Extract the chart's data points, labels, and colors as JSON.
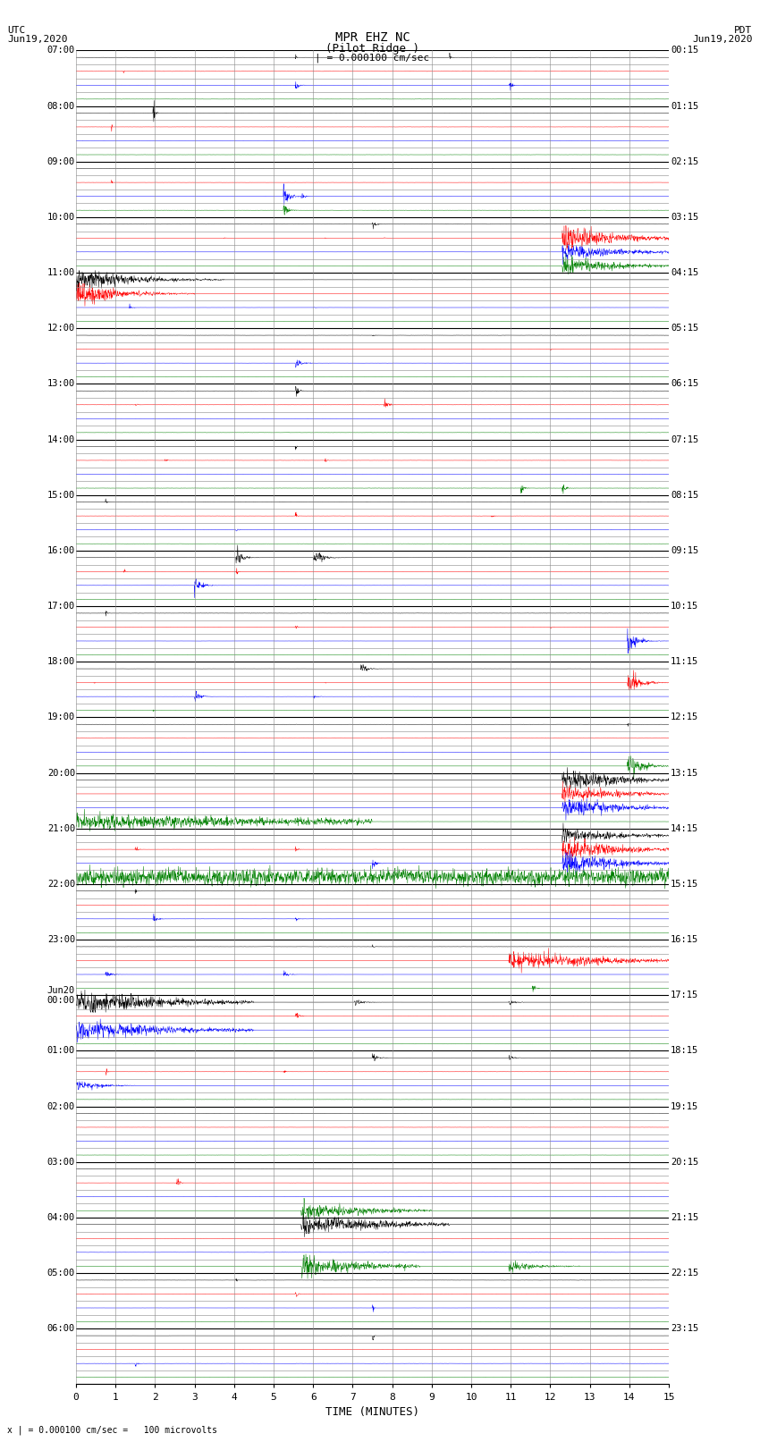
{
  "title_line1": "MPR EHZ NC",
  "title_line2": "(Pilot Ridge )",
  "scale_label": "| = 0.000100 cm/sec",
  "left_header_line1": "UTC",
  "left_header_line2": "Jun19,2020",
  "right_header_line1": "PDT",
  "right_header_line2": "Jun19,2020",
  "xlabel": "TIME (MINUTES)",
  "footer": "x | = 0.000100 cm/sec =   100 microvolts",
  "utc_hour_labels": [
    "07:00",
    "08:00",
    "09:00",
    "10:00",
    "11:00",
    "12:00",
    "13:00",
    "14:00",
    "15:00",
    "16:00",
    "17:00",
    "18:00",
    "19:00",
    "20:00",
    "21:00",
    "22:00",
    "23:00",
    "Jun20\n00:00",
    "01:00",
    "02:00",
    "03:00",
    "04:00",
    "05:00",
    "06:00"
  ],
  "pdt_hour_labels": [
    "00:15",
    "01:15",
    "02:15",
    "03:15",
    "04:15",
    "05:15",
    "06:15",
    "07:15",
    "08:15",
    "09:15",
    "10:15",
    "11:15",
    "12:15",
    "13:15",
    "14:15",
    "15:15",
    "16:15",
    "17:15",
    "18:15",
    "19:15",
    "20:15",
    "21:15",
    "22:15",
    "23:15"
  ],
  "n_hours": 24,
  "traces_per_hour": 4,
  "n_minutes": 15,
  "background_color": "#ffffff",
  "grid_color": "#888888",
  "hour_line_color": "#000000",
  "fig_width": 8.5,
  "fig_height": 16.13,
  "color_cycle": [
    "black",
    "red",
    "blue",
    "green"
  ]
}
